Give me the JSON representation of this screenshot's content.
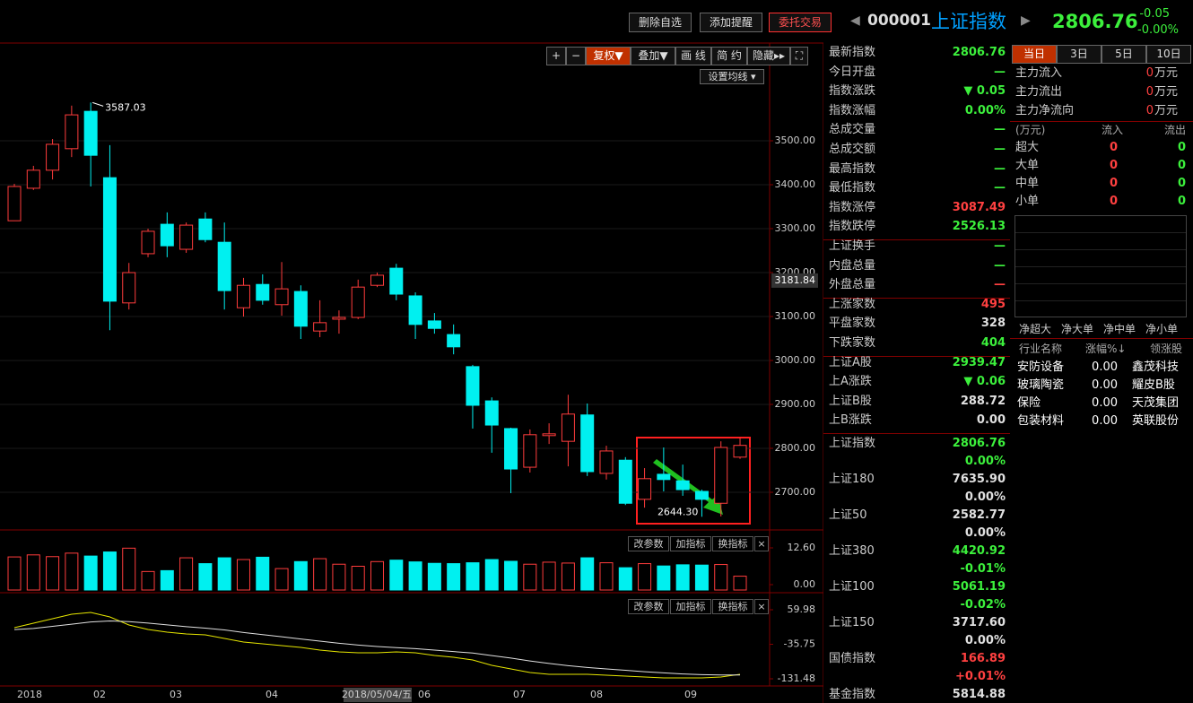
{
  "toolbar": {
    "buttons": [
      "删除自选",
      "添加提醒",
      "委托交易"
    ],
    "code": "000001",
    "name": "上证指数",
    "price": "2806.76",
    "change": "-0.05",
    "pct": "-0.00%"
  },
  "chart_toolbar": {
    "buttons": [
      "+",
      "−",
      "复权▼",
      "叠加▼",
      "画 线",
      "简 约",
      "隐藏▸▸"
    ],
    "ma_button": "设置均线 ▾"
  },
  "chart_data": {
    "type": "candlestick",
    "open": [
      3318,
      3392,
      3433,
      3482,
      3567,
      3416,
      3131,
      3243,
      3310,
      3253,
      3322,
      3269,
      3120,
      3173,
      3127,
      3157,
      3067,
      3094,
      3098,
      3171,
      3210,
      3147,
      3090,
      3059,
      2986,
      2908,
      2845,
      2757,
      2829,
      2816,
      2876,
      2743,
      2773,
      2684,
      2741,
      2726,
      2702,
      2675,
      2780
    ],
    "high": [
      3402,
      3443,
      3504,
      3580,
      3587.03,
      3490,
      3222,
      3300,
      3337,
      3314,
      3337,
      3314,
      3188,
      3196,
      3224,
      3171,
      3137,
      3114,
      3184,
      3200,
      3220,
      3155,
      3108,
      3082,
      2990,
      2916,
      2847,
      2843,
      2857,
      2922,
      2902,
      2806,
      2780,
      2755,
      2802,
      2763,
      2706,
      2816,
      2824
    ],
    "low": [
      3318,
      3388,
      3412,
      3463,
      3396,
      3069,
      3116,
      3235,
      3235,
      3245,
      3269,
      3116,
      3100,
      3127,
      3102,
      3049,
      3053,
      3061,
      3094,
      3167,
      3137,
      3049,
      3061,
      3014,
      2845,
      2790,
      2698,
      2745,
      2810,
      2759,
      2737,
      2729,
      2671,
      2665,
      2702,
      2692,
      2644.3,
      2645,
      2776
    ],
    "close": [
      3396,
      3433,
      3492,
      3559,
      3467,
      3135,
      3200,
      3294,
      3261,
      3308,
      3275,
      3159,
      3171,
      3137,
      3163,
      3078,
      3086,
      3098,
      3167,
      3194,
      3151,
      3082,
      3073,
      3031,
      2898,
      2853,
      2753,
      2831,
      2833,
      2878,
      2747,
      2794,
      2675,
      2731,
      2729,
      2706,
      2684,
      2802,
      2806.76
    ],
    "annotations": [
      "3587.03",
      "2644.30"
    ],
    "ylim": [
      2570,
      3690
    ],
    "yticks": [
      {
        "value": 3500,
        "label": "3500.00"
      },
      {
        "value": 3400,
        "label": "3400.00"
      },
      {
        "value": 3300,
        "label": "3300.00"
      },
      {
        "value": 3200,
        "label": "3200.00"
      },
      {
        "value": 3100,
        "label": "3100.00"
      },
      {
        "value": 3000,
        "label": "3000.00"
      },
      {
        "value": 2900,
        "label": "2900.00"
      },
      {
        "value": 2800,
        "label": "2800.00"
      },
      {
        "value": 2700,
        "label": "2700.00"
      }
    ],
    "crosshair": {
      "value": 3181.84,
      "label": "3181.84"
    },
    "x_labels": [
      "2018",
      "02",
      "03",
      "04",
      "2018/05/04/五",
      "06",
      "07",
      "08",
      "09"
    ],
    "up_color": "#ff3c3c",
    "down_color": "#00f0f0",
    "volume": [
      9.5,
      10.2,
      9.6,
      10.8,
      9.8,
      11.2,
      12.5,
      4.5,
      4.8,
      9.2,
      7.2,
      9.2,
      8.6,
      9.4,
      5.5,
      7.9,
      8.9,
      7.0,
      6.3,
      7.9,
      8.4,
      7.8,
      7.3,
      7.2,
      7.5,
      8.6,
      8.0,
      7.0,
      7.7,
      7.4,
      9.2,
      7.5,
      5.8,
      7.2,
      6.4,
      6.8,
      6.7,
      6.9,
      2.9
    ],
    "vol_ylim": [
      0,
      21.3
    ],
    "vol_yticks": [
      {
        "value": 12.6,
        "label": "12.60"
      },
      {
        "value": 0,
        "label": "0.00"
      }
    ],
    "dif": [
      10.3,
      22.7,
      35.1,
      47.5,
      52.5,
      40.1,
      17.7,
      5.3,
      -2.2,
      -7.1,
      -9.6,
      -19.6,
      -29.5,
      -34.5,
      -39.5,
      -44.4,
      -51.9,
      -56.9,
      -59.3,
      -59.3,
      -56.9,
      -59.3,
      -66.8,
      -71.8,
      -79.2,
      -94.2,
      -104.1,
      -114.0,
      -119.0,
      -119.0,
      -119.0,
      -121.5,
      -124.0,
      -126.5,
      -129.0,
      -129.0,
      -129.0,
      -126.5,
      -119.0
    ],
    "dea": [
      5,
      8,
      14,
      20,
      26,
      29,
      27,
      23,
      18,
      13,
      9,
      4,
      -3,
      -9,
      -15,
      -21,
      -27,
      -33,
      -38,
      -42,
      -45,
      -48,
      -52,
      -56,
      -60,
      -67,
      -74,
      -82,
      -89,
      -95,
      -100,
      -104,
      -108,
      -112,
      -115,
      -118,
      -120,
      -121,
      -121
    ],
    "macd_ylim": [
      -135,
      87
    ],
    "macd_yticks": [
      {
        "value": 59.98,
        "label": "59.98"
      },
      {
        "value": -35.75,
        "label": "-35.75"
      },
      {
        "value": -131.48,
        "label": "-131.48"
      }
    ],
    "panel_buttons": [
      "改参数",
      "加指标",
      "换指标",
      "×"
    ]
  },
  "quote": {
    "sections": [
      [
        [
          "最新指数",
          "2806.76",
          "#3cf03c"
        ],
        [
          "今日开盘",
          "—",
          "#3cf03c"
        ],
        [
          "指数涨跌",
          "▼ 0.05",
          "#3cf03c"
        ],
        [
          "指数涨幅",
          "0.00%",
          "#3cf03c"
        ],
        [
          "总成交量",
          "—",
          "#3cf03c"
        ],
        [
          "总成交额",
          "—",
          "#3cf03c"
        ],
        [
          "最高指数",
          "—",
          "#3cf03c"
        ],
        [
          "最低指数",
          "—",
          "#3cf03c"
        ],
        [
          "指数涨停",
          "3087.49",
          "#ff4040"
        ],
        [
          "指数跌停",
          "2526.13",
          "#3cf03c"
        ]
      ],
      [
        [
          "上证换手",
          "—",
          "#3cf03c"
        ],
        [
          "内盘总量",
          "—",
          "#3cf03c"
        ],
        [
          "外盘总量",
          "—",
          "#ff4040"
        ]
      ],
      [
        [
          "上涨家数",
          "495",
          "#ff4040"
        ],
        [
          "平盘家数",
          "328",
          "#e0e0e0"
        ],
        [
          "下跌家数",
          "404",
          "#3cf03c"
        ]
      ],
      [
        [
          "上证A股",
          "2939.47",
          "#3cf03c"
        ],
        [
          "上A涨跌",
          "▼ 0.06",
          "#3cf03c"
        ],
        [
          "上证B股",
          "288.72",
          "#e0e0e0"
        ],
        [
          "上B涨跌",
          "0.00",
          "#e0e0e0"
        ]
      ]
    ],
    "indices": [
      [
        "上证指数",
        "2806.76",
        "0.00%",
        "#3cf03c",
        "#3cf03c"
      ],
      [
        "上证180",
        "7635.90",
        "0.00%",
        "#e0e0e0",
        "#e0e0e0"
      ],
      [
        "上证50",
        "2582.77",
        "0.00%",
        "#e0e0e0",
        "#e0e0e0"
      ],
      [
        "上证380",
        "4420.92",
        "-0.01%",
        "#3cf03c",
        "#3cf03c"
      ],
      [
        "上证100",
        "5061.19",
        "-0.02%",
        "#3cf03c",
        "#3cf03c"
      ],
      [
        "上证150",
        "3717.60",
        "0.00%",
        "#e0e0e0",
        "#e0e0e0"
      ],
      [
        "国债指数",
        "166.89",
        "+0.01%",
        "#ff4040",
        "#ff4040"
      ],
      [
        "基金指数",
        "5814.88",
        "",
        "#e0e0e0",
        "#e0e0e0"
      ]
    ]
  },
  "flow": {
    "tabs": [
      "当日",
      "3日",
      "5日",
      "10日"
    ],
    "main": [
      [
        "主力流入",
        "0",
        "万元"
      ],
      [
        "主力流出",
        "0",
        "万元"
      ],
      [
        "主力净流向",
        "0",
        "万元"
      ]
    ],
    "header": [
      "(万元)",
      "流入",
      "流出"
    ],
    "rows": [
      [
        "超大",
        "0",
        "0"
      ],
      [
        "大单",
        "0",
        "0"
      ],
      [
        "中单",
        "0",
        "0"
      ],
      [
        "小单",
        "0",
        "0"
      ]
    ],
    "chart_labels": [
      "净超大",
      "净大单",
      "净中单",
      "净小单"
    ]
  },
  "industry": {
    "header": [
      "行业名称",
      "涨幅%↓",
      "领涨股"
    ],
    "rows": [
      [
        "安防设备",
        "0.00",
        "鑫茂科技"
      ],
      [
        "玻璃陶瓷",
        "0.00",
        "耀皮B股"
      ],
      [
        "保险",
        "0.00",
        "天茂集团"
      ],
      [
        "包装材料",
        "0.00",
        "英联股份"
      ]
    ]
  }
}
